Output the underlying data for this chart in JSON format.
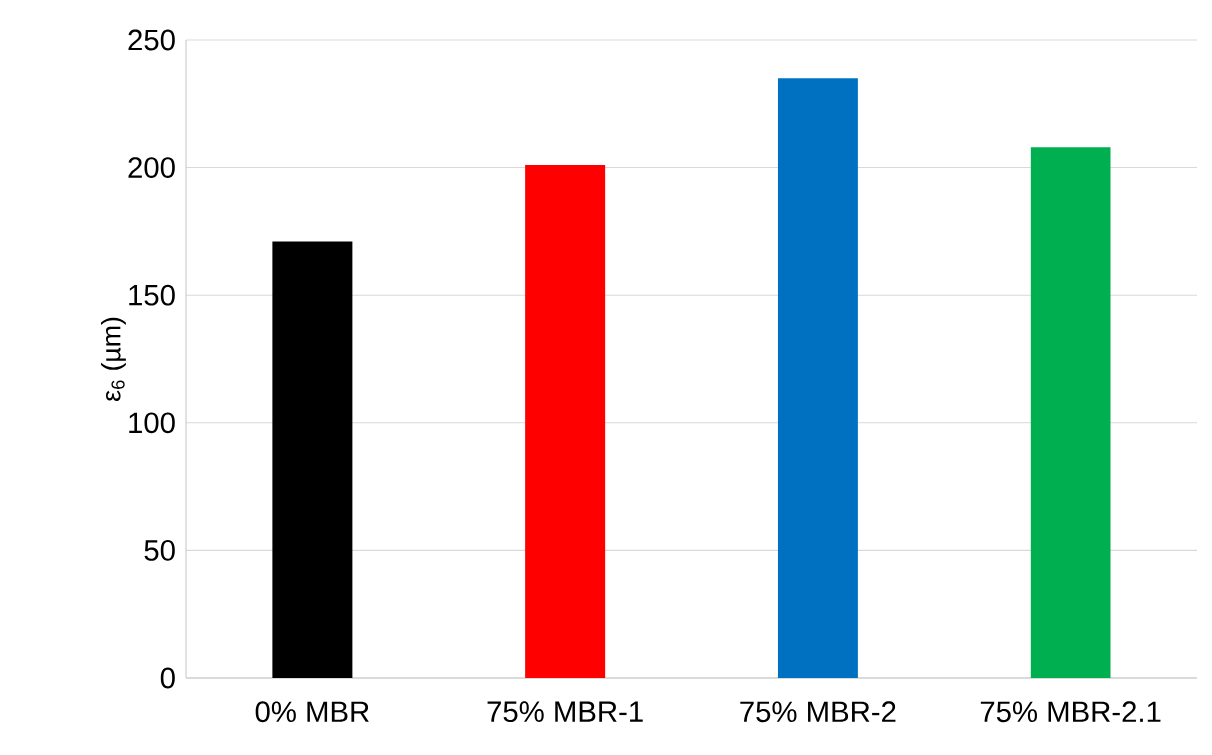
{
  "chart_data": {
    "type": "bar",
    "ylabel": "ε$_{6}$ (µm)",
    "categories": [
      "0% MBR",
      "75% MBR-1",
      "75% MBR-2",
      "75% MBR-2.1"
    ],
    "values": [
      171,
      201,
      235,
      208
    ],
    "colors": [
      "#000000",
      "#ff0000",
      "#0070c0",
      "#00b050"
    ],
    "ylim": [
      0,
      250
    ],
    "yticks": [
      0,
      50,
      100,
      150,
      200,
      250
    ],
    "grid": "y"
  }
}
